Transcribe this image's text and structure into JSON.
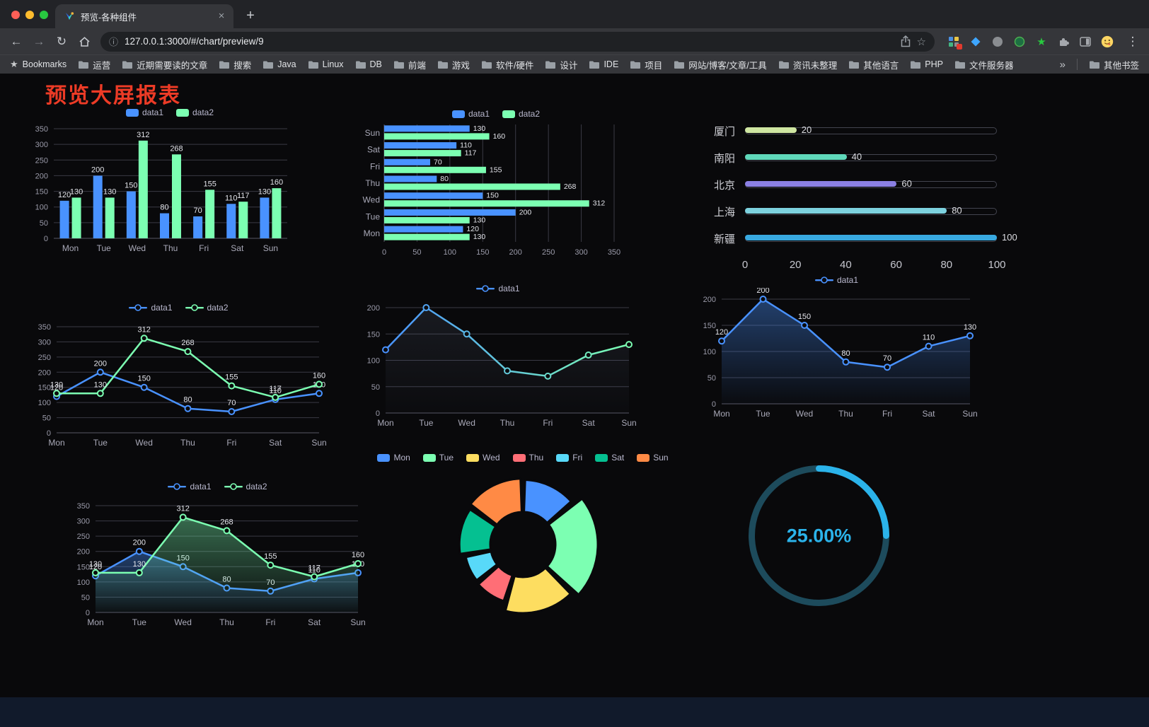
{
  "browser": {
    "tab_title": "预览-各种组件",
    "url": "127.0.0.1:3000/#/chart/preview/9",
    "icons": {
      "back": "←",
      "forward": "→",
      "reload": "↻",
      "site_info": "ⓘ",
      "bookmark_star": "☆",
      "bookmarks_star": "★",
      "menu": "⋮",
      "close_tab": "×",
      "new_tab": "+"
    },
    "bookmarks_bar": {
      "first_item": "Bookmarks",
      "folders": [
        "运营",
        "近期需要读的文章",
        "搜索",
        "Java",
        "Linux",
        "DB",
        "前端",
        "游戏",
        "软件/硬件",
        "设计",
        "IDE",
        "项目",
        "网站/博客/文章/工具",
        "资讯未整理",
        "其他语言",
        "PHP",
        "文件服务器"
      ],
      "overflow": "»",
      "other_bookmarks": "其他书签"
    }
  },
  "page": {
    "title": "预览大屏报表"
  },
  "chart_data": [
    {
      "id": "bar-grouped",
      "type": "bar",
      "title": "",
      "legend_position": "top",
      "value_labels": true,
      "categories": [
        "Mon",
        "Tue",
        "Wed",
        "Thu",
        "Fri",
        "Sat",
        "Sun"
      ],
      "series": [
        {
          "name": "data1",
          "color": "#4992ff",
          "values": [
            120,
            200,
            150,
            80,
            70,
            110,
            130
          ]
        },
        {
          "name": "data2",
          "color": "#7cffb2",
          "values": [
            130,
            130,
            312,
            268,
            155,
            117,
            160
          ]
        }
      ],
      "ylim": [
        0,
        350
      ],
      "yticks": [
        0,
        50,
        100,
        150,
        200,
        250,
        300,
        350
      ]
    },
    {
      "id": "bar-horizontal",
      "type": "hbar",
      "legend_position": "top",
      "value_labels": true,
      "categories": [
        "Mon",
        "Tue",
        "Wed",
        "Thu",
        "Fri",
        "Sat",
        "Sun"
      ],
      "series": [
        {
          "name": "data1",
          "color": "#4992ff",
          "values": [
            120,
            200,
            150,
            80,
            70,
            110,
            130
          ]
        },
        {
          "name": "data2",
          "color": "#7cffb2",
          "values": [
            130,
            130,
            312,
            268,
            155,
            117,
            160
          ]
        }
      ],
      "xlim": [
        0,
        350
      ],
      "xticks": [
        0,
        50,
        100,
        150,
        200,
        250,
        300,
        350
      ]
    },
    {
      "id": "capsule",
      "type": "progress",
      "max": 100,
      "xticks": [
        0,
        20,
        40,
        60,
        80,
        100
      ],
      "items": [
        {
          "label": "厦门",
          "value": 20,
          "color": "#cfe6a2"
        },
        {
          "label": "南阳",
          "value": 40,
          "color": "#5fd8ba"
        },
        {
          "label": "北京",
          "value": 60,
          "color": "#8b80e4"
        },
        {
          "label": "上海",
          "value": 80,
          "color": "#7dd2df"
        },
        {
          "label": "新疆",
          "value": 100,
          "color": "#38a9e0"
        }
      ]
    },
    {
      "id": "line-two",
      "type": "line",
      "categories": [
        "Mon",
        "Tue",
        "Wed",
        "Thu",
        "Fri",
        "Sat",
        "Sun"
      ],
      "series": [
        {
          "name": "data1",
          "color": "#4992ff",
          "labels": true,
          "values": [
            120,
            200,
            150,
            80,
            70,
            110,
            130
          ]
        },
        {
          "name": "data2",
          "color": "#7cffb2",
          "labels": true,
          "values": [
            130,
            130,
            312,
            268,
            155,
            117,
            160
          ]
        }
      ],
      "ylim": [
        0,
        350
      ],
      "yticks": [
        0,
        50,
        100,
        150,
        200,
        250,
        300,
        350
      ]
    },
    {
      "id": "line-gradient",
      "type": "line",
      "categories": [
        "Mon",
        "Tue",
        "Wed",
        "Thu",
        "Fri",
        "Sat",
        "Sun"
      ],
      "series": [
        {
          "name": "data1",
          "gradient": [
            "#4992ff",
            "#7cffb2"
          ],
          "shadow": true,
          "values": [
            120,
            200,
            150,
            80,
            70,
            110,
            130
          ]
        }
      ],
      "ylim": [
        0,
        200
      ],
      "yticks": [
        0,
        50,
        100,
        150,
        200
      ]
    },
    {
      "id": "line-area",
      "type": "line",
      "categories": [
        "Mon",
        "Tue",
        "Wed",
        "Thu",
        "Fri",
        "Sat",
        "Sun"
      ],
      "series": [
        {
          "name": "data1",
          "color": "#4992ff",
          "area": true,
          "labels": true,
          "values": [
            120,
            200,
            150,
            80,
            70,
            110,
            130
          ]
        }
      ],
      "ylim": [
        0,
        200
      ],
      "yticks": [
        0,
        50,
        100,
        150,
        200
      ]
    },
    {
      "id": "line-two-area",
      "type": "line",
      "categories": [
        "Mon",
        "Tue",
        "Wed",
        "Thu",
        "Fri",
        "Sat",
        "Sun"
      ],
      "series": [
        {
          "name": "data1",
          "color": "#4992ff",
          "area": true,
          "labels": true,
          "values": [
            120,
            200,
            150,
            80,
            70,
            110,
            130
          ]
        },
        {
          "name": "data2",
          "color": "#7cffb2",
          "area": true,
          "labels": true,
          "values": [
            130,
            130,
            312,
            268,
            155,
            117,
            160
          ]
        }
      ],
      "ylim": [
        0,
        350
      ],
      "yticks": [
        0,
        50,
        100,
        150,
        200,
        250,
        300,
        350
      ]
    },
    {
      "id": "rose",
      "type": "rose",
      "categories": [
        "Mon",
        "Tue",
        "Wed",
        "Thu",
        "Fri",
        "Sat",
        "Sun"
      ],
      "values": [
        120,
        200,
        150,
        80,
        70,
        110,
        130
      ],
      "colors": [
        "#4992ff",
        "#7cffb2",
        "#fddd60",
        "#ff6e76",
        "#58d9f9",
        "#05c091",
        "#ff8a45"
      ]
    },
    {
      "id": "ring",
      "type": "ring",
      "label": "25.00%",
      "percent": 25,
      "color": "#2bb3ea",
      "track": "#1d4b5c"
    }
  ]
}
